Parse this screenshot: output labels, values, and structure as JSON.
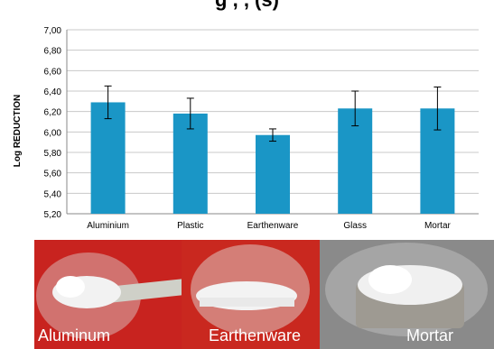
{
  "title_fragment": "g    ,   ,         (s)",
  "chart_data": {
    "type": "bar",
    "title": "",
    "xlabel": "",
    "ylabel": "Log REDUCTION",
    "ylim": [
      5.2,
      7.0
    ],
    "yticks": [
      "7,00",
      "6,80",
      "6,60",
      "6,40",
      "6,20",
      "6,00",
      "5,80",
      "5,60",
      "5,40",
      "5,20"
    ],
    "categories": [
      "Aluminium",
      "Plastic",
      "Earthenware",
      "Glass",
      "Mortar"
    ],
    "values": [
      6.29,
      6.18,
      5.97,
      6.23,
      6.23
    ],
    "errors": [
      0.16,
      0.15,
      0.06,
      0.17,
      0.21
    ],
    "bar_color": "#1a96c6",
    "grid": true
  },
  "photos": [
    {
      "caption": "Aluminum",
      "bg": "#c8231f"
    },
    {
      "caption": "Earthenware",
      "bg": "#c9281f"
    },
    {
      "caption": "Mortar",
      "bg": "#8a8a8a"
    }
  ]
}
